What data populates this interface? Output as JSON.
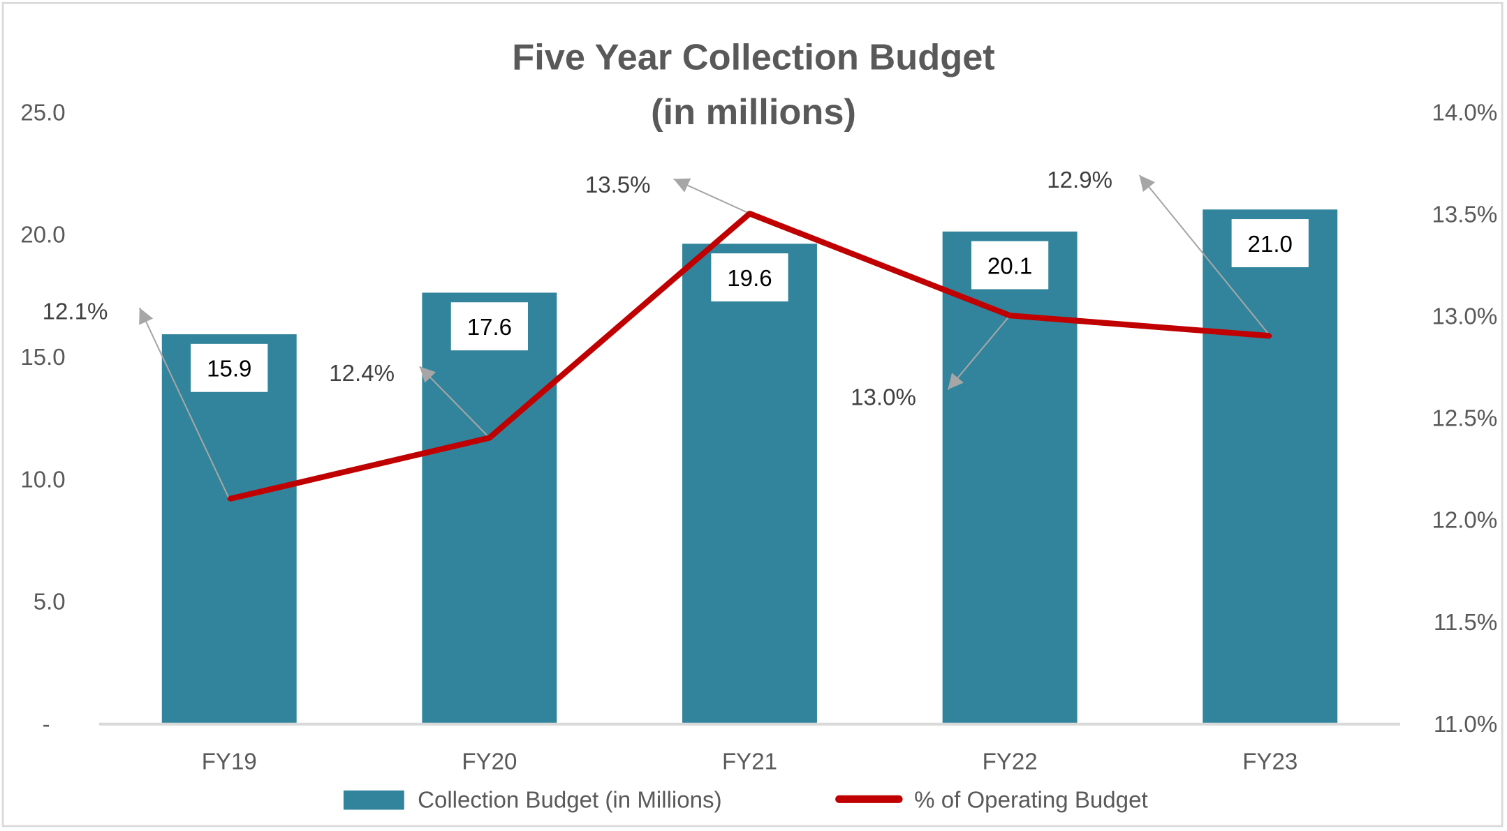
{
  "chart_data": {
    "type": "bar",
    "title": "Five Year Collection Budget",
    "subtitle": "(in millions)",
    "categories": [
      "FY19",
      "FY20",
      "FY21",
      "FY22",
      "FY23"
    ],
    "series": [
      {
        "name": "Collection Budget (in Millions)",
        "type": "bar",
        "axis": "left",
        "color": "#31849B",
        "values": [
          15.9,
          17.6,
          19.6,
          20.1,
          21.0
        ],
        "labels": [
          "15.9",
          "17.6",
          "19.6",
          "20.1",
          "21.0"
        ]
      },
      {
        "name": "% of Operating Budget",
        "type": "line",
        "axis": "right",
        "color": "#C00000",
        "values": [
          12.1,
          12.4,
          13.5,
          13.0,
          12.9
        ],
        "labels": [
          "12.1%",
          "12.4%",
          "13.5%",
          "13.0%",
          "12.9%"
        ]
      }
    ],
    "y_left": {
      "range": [
        0,
        25
      ],
      "ticks": [
        0,
        5,
        10,
        15,
        20,
        25
      ],
      "tick_labels": [
        "-",
        "5.0",
        "10.0",
        "15.0",
        "20.0",
        "25.0"
      ]
    },
    "y_right": {
      "range": [
        11,
        14
      ],
      "ticks": [
        11,
        11.5,
        12,
        12.5,
        13,
        13.5,
        14
      ],
      "tick_labels": [
        "11.0%",
        "11.5%",
        "12.0%",
        "12.5%",
        "13.0%",
        "13.5%",
        "14.0%"
      ]
    },
    "legend": "bottom",
    "grid": false
  }
}
